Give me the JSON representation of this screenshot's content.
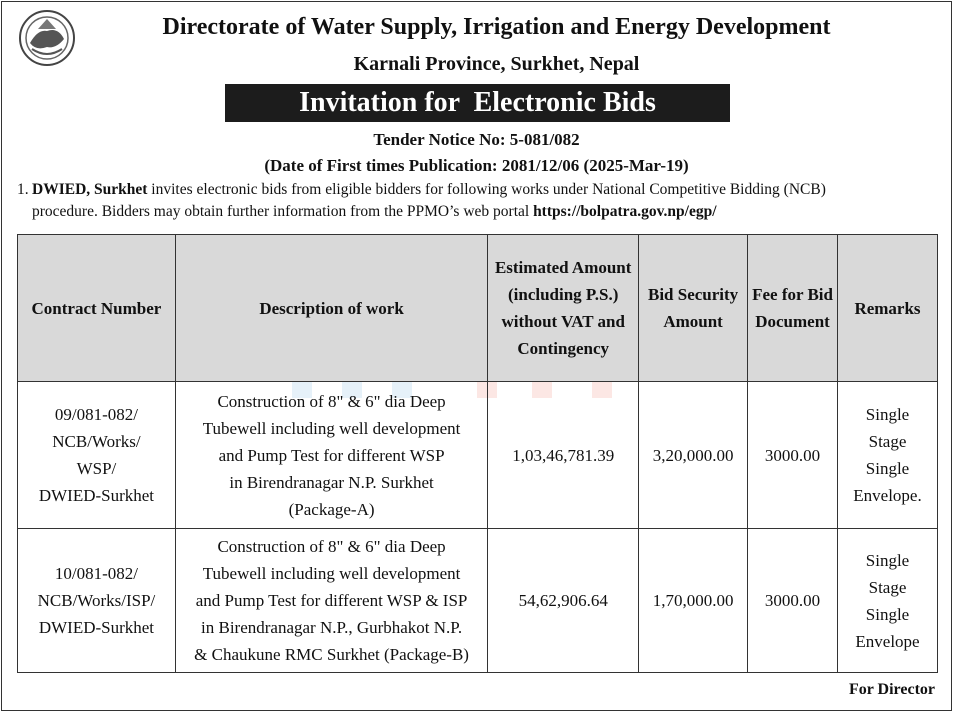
{
  "header": {
    "title": "Directorate of Water Supply, Irrigation and Energy Development",
    "subtitle": "Karnali Province, Surkhet, Nepal",
    "banner": "Invitation for  Electronic Bids",
    "tender_notice": "Tender Notice No: 5-081/082",
    "publication_date": "(Date of First times Publication: 2081/12/06 (2025-Mar-19)"
  },
  "intro": {
    "number": "1.",
    "org": "DWIED, Surkhet",
    "text_line1": " invites electronic bids from eligible bidders for following works under National Competitive Bidding (NCB)",
    "text_line2": "procedure. Bidders may obtain further information from the PPMO’s web portal ",
    "url": "https://bolpatra.gov.np/egp/"
  },
  "table": {
    "headers": [
      "Contract Number",
      "Description of work",
      "Estimated Amount (including P.S.) without VAT and Contingency",
      "Bid Security Amount",
      "Fee for Bid Document",
      "Remarks"
    ],
    "rows": [
      {
        "contract": [
          "09/081-082/",
          "NCB/Works/",
          "WSP/",
          "DWIED-Surkhet"
        ],
        "description": [
          "Construction of 8\" & 6\" dia Deep",
          "Tubewell including well development",
          "and Pump Test for different WSP",
          "in Birendranagar N.P. Surkhet",
          "(Package-A)"
        ],
        "estimated": "1,03,46,781.39",
        "security": "3,20,000.00",
        "fee": "3000.00",
        "remarks": [
          "Single",
          "Stage",
          "Single",
          "Envelope."
        ]
      },
      {
        "contract": [
          "10/081-082/",
          "NCB/Works/ISP/",
          "DWIED-Surkhet"
        ],
        "description": [
          "Construction of 8\" & 6\" dia Deep",
          "Tubewell including well development",
          "and Pump Test for different WSP & ISP",
          "in Birendranagar N.P., Gurbhakot N.P.",
          "& Chaukune RMC Surkhet (Package-B)"
        ],
        "estimated": "54,62,906.64",
        "security": "1,70,000.00",
        "fee": "3000.00",
        "remarks": [
          "Single",
          "Stage",
          "Single",
          "Envelope"
        ]
      }
    ]
  },
  "footer": {
    "signoff": "For Director"
  },
  "colors": {
    "banner_bg": "#1c1c1c",
    "header_bg": "#d9d9d9",
    "watermark_blue": "#3a8fd1",
    "watermark_red": "#e8452c"
  },
  "icons": {
    "logo": "nepal-emblem-icon",
    "watermark": "news-watermark-logo"
  }
}
